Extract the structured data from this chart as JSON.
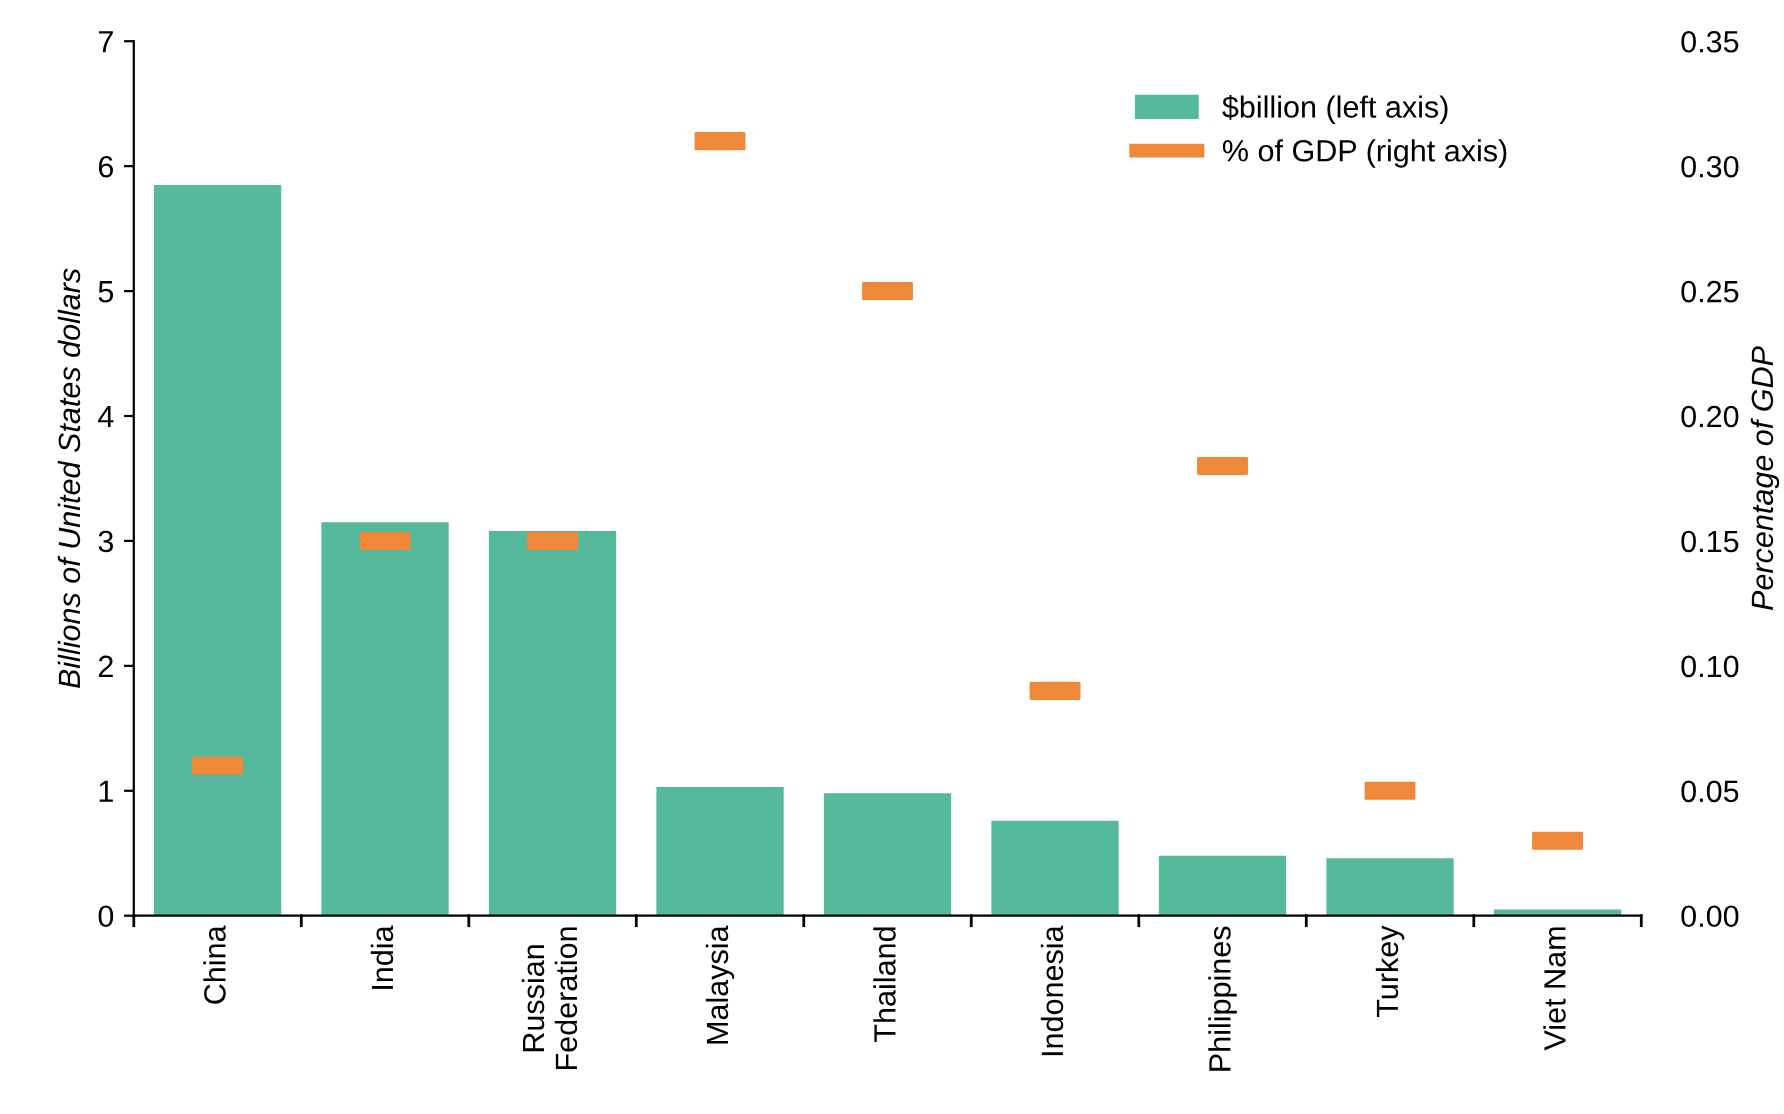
{
  "chart_data": {
    "type": "bar",
    "categories": [
      "China",
      "India",
      "Russian\nFederation",
      "Malaysia",
      "Thailand",
      "Indonesia",
      "Philippines",
      "Turkey",
      "Viet Nam"
    ],
    "ylabel": "Billions of United States dollars",
    "y2label": "Percentage of GDP",
    "ylim": [
      0,
      7
    ],
    "yticks": [
      0,
      1,
      2,
      3,
      4,
      5,
      6,
      7
    ],
    "y2lim": [
      0,
      0.35
    ],
    "y2ticks": [
      {
        "value": 0,
        "label": "0.00"
      },
      {
        "value": 0.05,
        "label": "0.05"
      },
      {
        "value": 0.1,
        "label": "0.10"
      },
      {
        "value": 0.15,
        "label": "0.15"
      },
      {
        "value": 0.2,
        "label": "0.20"
      },
      {
        "value": 0.25,
        "label": "0.25"
      },
      {
        "value": 0.3,
        "label": "0.30"
      },
      {
        "value": 0.35,
        "label": "0.35"
      }
    ],
    "series": [
      {
        "name": "$billion (left axis)",
        "color": "#55b99b",
        "values": [
          5.85,
          3.15,
          3.08,
          1.03,
          0.98,
          0.76,
          0.48,
          0.46,
          0.05
        ]
      },
      {
        "name": "% of GDP (right axis)",
        "color": "#f0883a",
        "type": "scatter",
        "axis": "y2",
        "values": [
          0.06,
          0.15,
          0.15,
          0.31,
          0.25,
          0.09,
          0.18,
          0.05,
          0.03
        ]
      }
    ],
    "legend": "top right",
    "grid": false
  }
}
